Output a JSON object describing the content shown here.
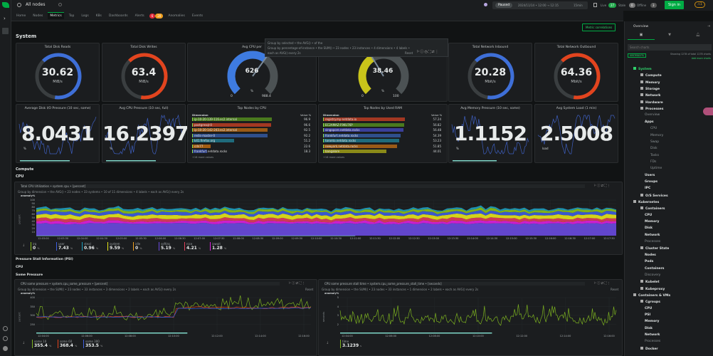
{
  "app": {
    "room": "All nodes",
    "tabs": [
      {
        "label": "Home"
      },
      {
        "label": "Nodes"
      },
      {
        "label": "Metrics"
      },
      {
        "label": "Top"
      },
      {
        "label": "Logs"
      },
      {
        "label": "K8s"
      },
      {
        "label": "Dashboards"
      },
      {
        "label": "Alerts"
      },
      {
        "label": "Anomalies"
      },
      {
        "label": "Events"
      }
    ],
    "alerts_critical": "6",
    "alerts_warning": "20"
  },
  "topbar": {
    "paused": "Paused",
    "time_range": "2024/11/14 • 12:00 → 12:15",
    "duration": "15min",
    "live_label": "Live",
    "live_count": "27",
    "stale_label": "Stale",
    "stale_count": "0",
    "offline_label": "Offline",
    "offline_count": "3",
    "sign_in": "Sign in",
    "warning_count": "1"
  },
  "main": {
    "section": "System",
    "metric_correlations": "Metric correlations",
    "kpis": [
      {
        "title": "Total Disk Reads",
        "value": "30.62",
        "unit": "MiB/s",
        "color": "#3e6fd8"
      },
      {
        "title": "Total Disk Writes",
        "value": "63.4",
        "unit": "MiB/s",
        "color": "#e2441e"
      },
      {
        "title": "Total Network Inbound",
        "value": "20.28",
        "unit": "Mbit/s",
        "color": "#3e6fd8"
      },
      {
        "title": "Total Network Outbound",
        "value": "64.36",
        "unit": "Mbit/s",
        "color": "#e2441e"
      }
    ],
    "gauges": [
      {
        "title": "Avg CPU per",
        "value": "626",
        "unit": "%",
        "min": "0",
        "max": "988.4",
        "fill": 0.633,
        "color": "#3e7be0"
      },
      {
        "title": "",
        "value": "38.46",
        "unit": "%",
        "min": "0",
        "max": "100",
        "fill": 0.3846,
        "color": "#c9c41a"
      }
    ],
    "popover": {
      "line1": "Group by selected • the AVG() • of the",
      "line2": "Group by percentage-of-instance • the SUM() • 23 nodes • 23 instances • 4 dimensions • 4 labels •",
      "line3": "each as AVG() every 2s",
      "reset": "Reset"
    },
    "pressure": [
      {
        "title": "Average Disk I/O Pressure (10 sec, some)",
        "value": "8.0431",
        "unit": "%"
      },
      {
        "title": "Avg CPU Pressure (10 sec, full)",
        "value": "16.2397",
        "unit": "%"
      },
      {
        "title": "Avg Memory Pressure (10 sec, some)",
        "value": "1.1152",
        "unit": "%"
      },
      {
        "title": "Avg System Load (1 min)",
        "value": "2.5008",
        "unit": "load"
      }
    ],
    "top_cpu": {
      "title": "Top Nodes by CPU",
      "col_dim": "Dimension",
      "col_val": "Value %",
      "more": "+16 more values",
      "rows": [
        {
          "name": "ip-10-20-139-116.ec2.internal",
          "value": "96.9",
          "pct": 0.97,
          "color": "#4a7a1e"
        },
        {
          "name": "postgresql-0",
          "value": "96.6",
          "pct": 0.966,
          "color": "#a33822"
        },
        {
          "name": "ip-10-20-142-243.ec2.internal",
          "value": "92.5",
          "pct": 0.925,
          "color": "#9a5a16"
        },
        {
          "name": "redis-master-0",
          "value": "92.2",
          "pct": 0.922,
          "color": "#2f4f8c"
        },
        {
          "name": "k41.firefox.org",
          "value": "51.2",
          "pct": 0.512,
          "color": "#1f6b7c"
        },
        {
          "name": "cdn77",
          "value": "22.6",
          "pct": 0.226,
          "color": "#a35d14"
        },
        {
          "name": "frankfurt.netdata.rocks",
          "value": "18.3",
          "pct": 0.183,
          "color": "#2c3f86"
        }
      ]
    },
    "top_ram": {
      "title": "Top Nodes by Used RAM",
      "col_dim": "Dimension",
      "col_val": "Value %",
      "more": "+16 more values",
      "rows": [
        {
          "name": "registry.my-netdata.io",
          "value": "57.24",
          "pct": 1.0,
          "color": "#a33822"
        },
        {
          "name": "EC2AMAZ-F9KU76P",
          "value": "56.82",
          "pct": 0.99,
          "color": "#4a7a1e"
        },
        {
          "name": "singapore.netdata.rocks",
          "value": "56.48",
          "pct": 0.985,
          "color": "#3a3f9a"
        },
        {
          "name": "frankfurt.netdata.rocks",
          "value": "54.39",
          "pct": 0.95,
          "color": "#2f4f8c"
        },
        {
          "name": "toronto.netdata.rocks",
          "value": "53.23",
          "pct": 0.93,
          "color": "#1f6b7c"
        },
        {
          "name": "newyork.netdata.rocks",
          "value": "51.85",
          "pct": 0.905,
          "color": "#9a5a16"
        },
        {
          "name": "bangalore",
          "value": "44.01",
          "pct": 0.77,
          "color": "#8a8a18"
        }
      ]
    },
    "compute": "Compute",
    "cpu": "CPU",
    "cpu_chart": {
      "title": "Total CPU Utilization • system.cpu • [percent]",
      "controls": "Group by dimension • the AVG() • 23 nodes • 33 systems • 10 of 11 dimensions • 4 labels • each as AVG() every 2s",
      "anomaly": "anomaly%",
      "y_unit": "percent",
      "yticks": [
        "100",
        "90",
        "80",
        "70",
        "60",
        "50",
        "40",
        "30",
        "20",
        "10"
      ],
      "xticks": [
        "12:03:00",
        "12:03:30",
        "12:04:00",
        "12:04:30",
        "12:05:00",
        "12:05:30",
        "12:06:00",
        "12:06:30",
        "12:07:00",
        "12:07:30",
        "12:08:00",
        "12:08:30",
        "12:09:00",
        "12:09:30",
        "12:10:00",
        "12:10:30",
        "12:11:00",
        "12:11:30",
        "12:12:00",
        "12:12:30",
        "12:13:00",
        "12:13:30",
        "12:14:00",
        "12:14:30",
        "12:15:00",
        "12:15:30",
        "12:16:00",
        "12:16:30",
        "12:17:00",
        "12:17:30"
      ],
      "legend": [
        {
          "name": "irq",
          "value": "0",
          "unit": "%",
          "color": "#8bc219"
        },
        {
          "name": "user",
          "value": "7.43",
          "unit": "%",
          "color": "#3e5fe0"
        },
        {
          "name": "steal",
          "value": "0.96",
          "unit": "%",
          "color": "#1fa0c0"
        },
        {
          "name": "system",
          "value": "9.59",
          "unit": "%",
          "color": "#e8e81a"
        },
        {
          "name": "idle",
          "value": "0",
          "unit": "%",
          "color": "#f0a020"
        },
        {
          "name": "softirq",
          "value": "5.19",
          "unit": "%",
          "color": "#6a4ae0"
        },
        {
          "name": "nice",
          "value": "4.21",
          "unit": "%",
          "color": "#e0405a"
        },
        {
          "name": "iowait",
          "value": "1.28",
          "unit": "%",
          "color": "#e020e0"
        }
      ]
    },
    "psi": "Pressure Stall Information (PSI)",
    "psi_cpu": "CPU",
    "some_pressure": "Some Pressure",
    "psi_chart": {
      "title": "CPU some pressure • system.cpu_some_pressure • [percent]",
      "controls": "Group by dimension • the SUM() • 23 nodes • 33 instances • 3 dimensions • 2 labels • each as AVG() every 2s",
      "anomaly": "anomaly%",
      "y_unit": "percent",
      "reset": "Reset",
      "yticks": [
        "400",
        "350",
        "300",
        "250"
      ],
      "xticks": [
        "12:04:00",
        "12:06:00",
        "12:08:00",
        "12:10:00",
        "12:12:00",
        "12:14:00",
        "12:16:00"
      ],
      "legend": [
        {
          "name": "some 10",
          "value": "355.4",
          "unit": "%",
          "color": "#7bb020"
        },
        {
          "name": "some 60",
          "value": "368.4",
          "unit": "%",
          "color": "#e2441e"
        },
        {
          "name": "some 300",
          "value": "353.5",
          "unit": "%",
          "color": "#3e5fe0"
        }
      ]
    },
    "stall_chart": {
      "title": "CPU some pressure stall time • system.cpu_some_pressure_stall_time • [seconds]",
      "controls": "Group by dimension • the SUM() • 23 nodes • 33 instances • 1 dimension • 2 labels • each as AVG() every 2s",
      "anomaly": "anomaly%",
      "y_unit": "seconds",
      "reset": "Reset",
      "yticks": [
        "5",
        "4",
        "3",
        "2"
      ],
      "xticks": [
        "12:04:00",
        "12:06:00",
        "12:08:00",
        "12:10:00",
        "12:12:00",
        "12:14:00",
        "12:16:00"
      ],
      "legend": [
        {
          "name": "time",
          "value": "3.1239",
          "unit": "s",
          "color": "#7bb020"
        }
      ]
    }
  },
  "sidebar": {
    "title": "Overview",
    "search_placeholder": "Search charts",
    "anomalies": "ANOMALY%",
    "showing": "Showing 1278 of total 1278 charts",
    "add_more": "Add more charts",
    "items": [
      {
        "label": "System",
        "level": 0,
        "active": true
      },
      {
        "label": "Compute",
        "level": 1
      },
      {
        "label": "Memory",
        "level": 1
      },
      {
        "label": "Storage",
        "level": 1
      },
      {
        "label": "Network",
        "level": 1
      },
      {
        "label": "Hardware",
        "level": 1
      },
      {
        "label": "Processes",
        "level": 1
      },
      {
        "label": "Overview",
        "level": 2,
        "dim": true
      },
      {
        "label": "Apps",
        "level": 2
      },
      {
        "label": "CPU",
        "level": 3,
        "dim": true
      },
      {
        "label": "Memory",
        "level": 3,
        "dim": true
      },
      {
        "label": "Swap",
        "level": 3,
        "dim": true
      },
      {
        "label": "Disk",
        "level": 3,
        "dim": true
      },
      {
        "label": "Tasks",
        "level": 3,
        "dim": true
      },
      {
        "label": "FDs",
        "level": 3,
        "dim": true
      },
      {
        "label": "Uptime",
        "level": 3,
        "dim": true
      },
      {
        "label": "Users",
        "level": 2
      },
      {
        "label": "Groups",
        "level": 2
      },
      {
        "label": "IPC",
        "level": 2
      },
      {
        "label": "O/S Services",
        "level": 1
      },
      {
        "label": "Kubernetes",
        "level": 0
      },
      {
        "label": "Containers",
        "level": 1
      },
      {
        "label": "CPU",
        "level": 2
      },
      {
        "label": "Memory",
        "level": 2
      },
      {
        "label": "Disk",
        "level": 2
      },
      {
        "label": "Network",
        "level": 2
      },
      {
        "label": "Processes",
        "level": 2,
        "dim": true
      },
      {
        "label": "Cluster State",
        "level": 1
      },
      {
        "label": "Nodes",
        "level": 2
      },
      {
        "label": "Pods",
        "level": 2
      },
      {
        "label": "Containers",
        "level": 2
      },
      {
        "label": "Discovery",
        "level": 2,
        "dim": true
      },
      {
        "label": "Kubelet",
        "level": 1
      },
      {
        "label": "Kubeproxy",
        "level": 1
      },
      {
        "label": "Containers & VMs",
        "level": 0
      },
      {
        "label": "Cgroups",
        "level": 1
      },
      {
        "label": "CPU",
        "level": 2
      },
      {
        "label": "PSI",
        "level": 2
      },
      {
        "label": "Memory",
        "level": 2
      },
      {
        "label": "Disk",
        "level": 2
      },
      {
        "label": "Network",
        "level": 2
      },
      {
        "label": "Processes",
        "level": 2,
        "dim": true
      },
      {
        "label": "Docker",
        "level": 1
      }
    ]
  }
}
